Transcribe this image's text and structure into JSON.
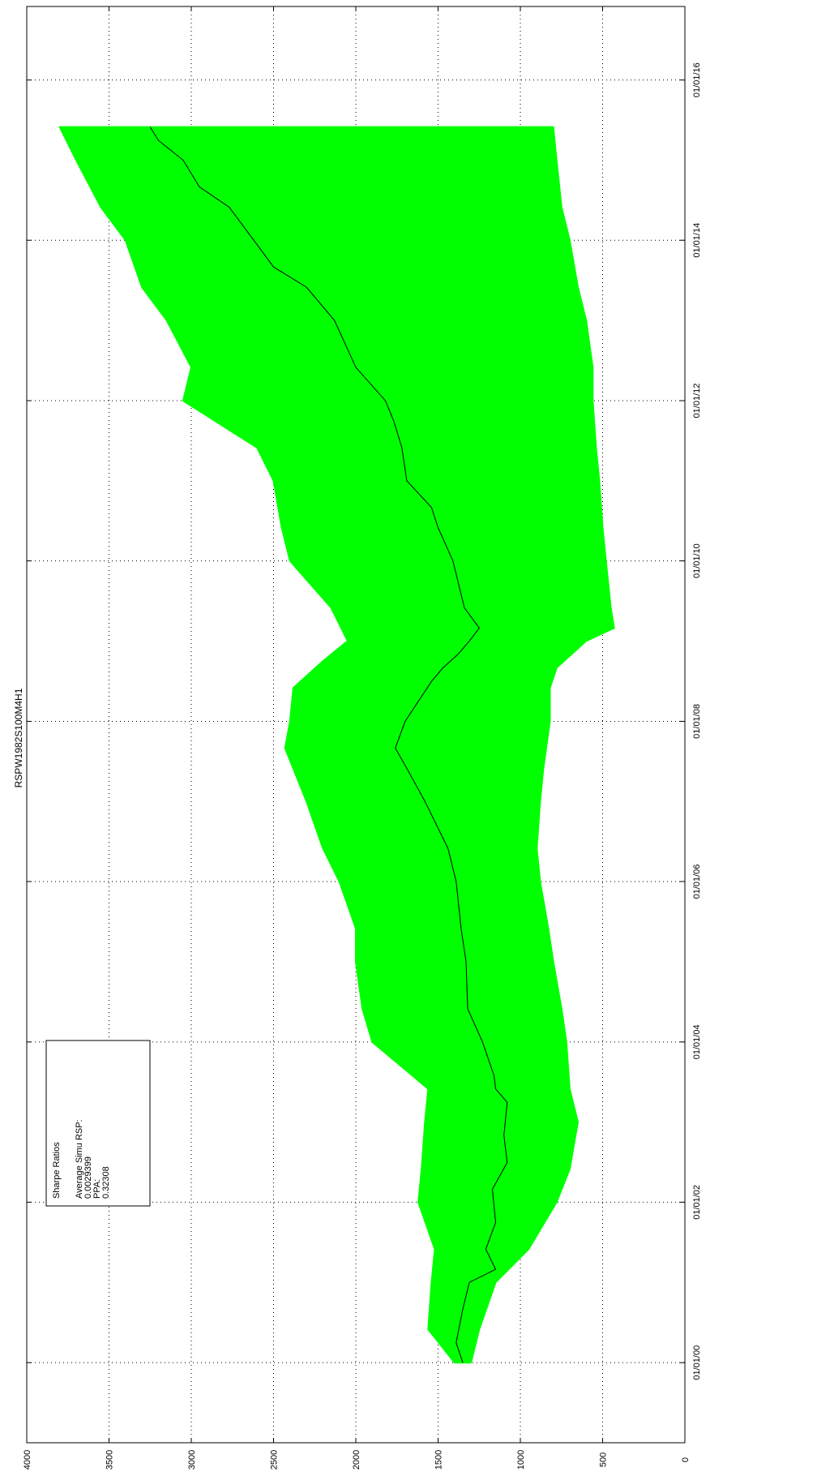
{
  "chart_data": {
    "type": "line",
    "orientation": "rotated-90-ccw",
    "title": "RSPW1982S100M4H1",
    "xlabel": "",
    "ylabel": "",
    "grid": true,
    "x_ticks": [
      "01/01/00",
      "01/01/02",
      "01/01/04",
      "01/01/06",
      "01/01/08",
      "01/01/10",
      "01/01/12",
      "01/01/14",
      "01/01/16"
    ],
    "x_range": [
      "1999-01-01",
      "2016-12-01"
    ],
    "y_ticks": [
      0,
      500,
      1000,
      1500,
      2000,
      2500,
      3000,
      3500,
      4000
    ],
    "ylim": [
      0,
      4000
    ],
    "series": [
      {
        "role": "average simulated path",
        "color": "#000000",
        "points": [
          [
            "2000-01-01",
            1350
          ],
          [
            "2000-04-01",
            1390
          ],
          [
            "2000-09-01",
            1350
          ],
          [
            "2001-01-01",
            1310
          ],
          [
            "2001-03-01",
            1150
          ],
          [
            "2001-06-01",
            1210
          ],
          [
            "2001-10-01",
            1150
          ],
          [
            "2002-03-01",
            1170
          ],
          [
            "2002-07-01",
            1080
          ],
          [
            "2002-11-01",
            1100
          ],
          [
            "2003-04-01",
            1080
          ],
          [
            "2003-06-01",
            1150
          ],
          [
            "2003-08-01",
            1160
          ],
          [
            "2004-01-01",
            1230
          ],
          [
            "2004-06-01",
            1320
          ],
          [
            "2005-01-01",
            1330
          ],
          [
            "2005-06-01",
            1360
          ],
          [
            "2006-01-01",
            1390
          ],
          [
            "2006-06-01",
            1440
          ],
          [
            "2007-01-01",
            1580
          ],
          [
            "2007-06-01",
            1690
          ],
          [
            "2007-09-01",
            1760
          ],
          [
            "2008-01-01",
            1700
          ],
          [
            "2008-04-01",
            1620
          ],
          [
            "2008-07-01",
            1540
          ],
          [
            "2008-09-01",
            1470
          ],
          [
            "2008-11-01",
            1380
          ],
          [
            "2009-01-01",
            1310
          ],
          [
            "2009-03-01",
            1250
          ],
          [
            "2009-06-01",
            1340
          ],
          [
            "2009-10-01",
            1380
          ],
          [
            "2010-01-01",
            1410
          ],
          [
            "2010-06-01",
            1500
          ],
          [
            "2010-09-01",
            1540
          ],
          [
            "2011-01-01",
            1690
          ],
          [
            "2011-06-01",
            1720
          ],
          [
            "2011-10-01",
            1770
          ],
          [
            "2012-01-01",
            1820
          ],
          [
            "2012-06-01",
            2000
          ],
          [
            "2013-01-01",
            2130
          ],
          [
            "2013-06-01",
            2300
          ],
          [
            "2013-09-01",
            2500
          ],
          [
            "2014-01-01",
            2620
          ],
          [
            "2014-06-01",
            2770
          ],
          [
            "2014-09-01",
            2950
          ],
          [
            "2015-01-01",
            3050
          ],
          [
            "2015-04-01",
            3200
          ],
          [
            "2015-06-01",
            3250
          ]
        ]
      }
    ],
    "envelope": {
      "role": "simulated paths",
      "color": "#00ff00",
      "upper": [
        [
          "2000-01-01",
          1400
        ],
        [
          "2000-06-01",
          1560
        ],
        [
          "2001-01-01",
          1540
        ],
        [
          "2001-06-01",
          1520
        ],
        [
          "2002-01-01",
          1620
        ],
        [
          "2002-06-01",
          1600
        ],
        [
          "2003-01-01",
          1580
        ],
        [
          "2003-06-01",
          1560
        ],
        [
          "2004-01-01",
          1900
        ],
        [
          "2004-06-01",
          1960
        ],
        [
          "2005-01-01",
          2000
        ],
        [
          "2005-06-01",
          2000
        ],
        [
          "2006-01-01",
          2100
        ],
        [
          "2006-06-01",
          2200
        ],
        [
          "2007-01-01",
          2300
        ],
        [
          "2007-09-01",
          2430
        ],
        [
          "2008-01-01",
          2400
        ],
        [
          "2008-06-01",
          2380
        ],
        [
          "2008-10-01",
          2200
        ],
        [
          "2009-01-01",
          2050
        ],
        [
          "2009-06-01",
          2150
        ],
        [
          "2010-01-01",
          2400
        ],
        [
          "2010-06-01",
          2450
        ],
        [
          "2011-01-01",
          2500
        ],
        [
          "2011-06-01",
          2600
        ],
        [
          "2012-01-01",
          3050
        ],
        [
          "2012-06-01",
          3000
        ],
        [
          "2013-01-01",
          3150
        ],
        [
          "2013-06-01",
          3300
        ],
        [
          "2014-01-01",
          3400
        ],
        [
          "2014-06-01",
          3550
        ],
        [
          "2015-01-01",
          3700
        ],
        [
          "2015-06-01",
          3800
        ]
      ],
      "lower": [
        [
          "2015-06-01",
          800
        ],
        [
          "2015-01-01",
          780
        ],
        [
          "2014-06-01",
          750
        ],
        [
          "2014-01-01",
          700
        ],
        [
          "2013-06-01",
          650
        ],
        [
          "2013-01-01",
          600
        ],
        [
          "2012-06-01",
          560
        ],
        [
          "2012-01-01",
          560
        ],
        [
          "2011-06-01",
          540
        ],
        [
          "2011-01-01",
          520
        ],
        [
          "2010-06-01",
          500
        ],
        [
          "2010-01-01",
          480
        ],
        [
          "2009-06-01",
          450
        ],
        [
          "2009-03-01",
          430
        ],
        [
          "2009-01-01",
          600
        ],
        [
          "2008-09-01",
          780
        ],
        [
          "2008-06-01",
          820
        ],
        [
          "2008-01-01",
          820
        ],
        [
          "2007-06-01",
          860
        ],
        [
          "2007-01-01",
          880
        ],
        [
          "2006-06-01",
          900
        ],
        [
          "2006-01-01",
          880
        ],
        [
          "2005-06-01",
          830
        ],
        [
          "2005-01-01",
          800
        ],
        [
          "2004-06-01",
          750
        ],
        [
          "2004-01-01",
          720
        ],
        [
          "2003-06-01",
          700
        ],
        [
          "2003-01-01",
          650
        ],
        [
          "2002-06-01",
          700
        ],
        [
          "2002-01-01",
          780
        ],
        [
          "2001-06-01",
          950
        ],
        [
          "2001-01-01",
          1150
        ],
        [
          "2000-06-01",
          1250
        ],
        [
          "2000-01-01",
          1300
        ]
      ]
    },
    "annotation": {
      "lines": [
        "Sharpe Ratios",
        "Average Simu RSP:",
        "0.0029399",
        "PPA:",
        "0.32308"
      ]
    }
  }
}
